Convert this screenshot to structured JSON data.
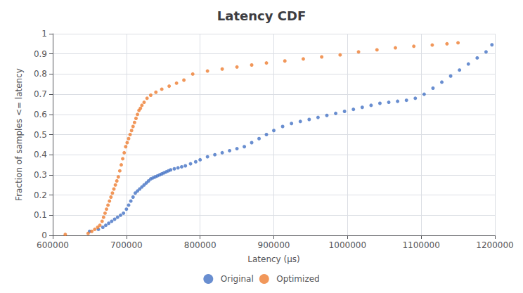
{
  "chart_data": {
    "type": "scatter",
    "title": "Latency CDF",
    "xlabel": "Latency (µs)",
    "ylabel": "Fraction of samples <= latency",
    "xlim": [
      600000,
      1200000
    ],
    "ylim": [
      0,
      1
    ],
    "xticks": [
      600000,
      700000,
      800000,
      900000,
      1000000,
      1100000,
      1200000
    ],
    "yticks": [
      0,
      0.1,
      0.2,
      0.3,
      0.4,
      0.5,
      0.6,
      0.7,
      0.8,
      0.9,
      1
    ],
    "grid": true,
    "legend": "bottom",
    "series": [
      {
        "name": "Original",
        "color": "#4472C4",
        "x": [
          650000,
          662000,
          668000,
          672000,
          676000,
          680000,
          684000,
          688000,
          692000,
          696000,
          700000,
          703000,
          706000,
          709000,
          712000,
          715000,
          718000,
          721000,
          724000,
          727000,
          730000,
          733000,
          736000,
          739000,
          742000,
          745000,
          748000,
          751000,
          754000,
          757000,
          760000,
          765000,
          770000,
          775000,
          780000,
          787000,
          794000,
          800000,
          810000,
          820000,
          830000,
          840000,
          850000,
          860000,
          870000,
          880000,
          890000,
          900000,
          912000,
          924000,
          936000,
          948000,
          960000,
          972000,
          984000,
          996000,
          1008000,
          1020000,
          1032000,
          1044000,
          1056000,
          1068000,
          1080000,
          1092000,
          1104000,
          1116000,
          1128000,
          1140000,
          1152000,
          1164000,
          1176000,
          1188000,
          1196000
        ],
        "values": [
          0.02,
          0.03,
          0.04,
          0.05,
          0.06,
          0.07,
          0.08,
          0.09,
          0.1,
          0.11,
          0.13,
          0.15,
          0.17,
          0.19,
          0.21,
          0.22,
          0.23,
          0.24,
          0.25,
          0.26,
          0.27,
          0.28,
          0.285,
          0.29,
          0.295,
          0.3,
          0.305,
          0.31,
          0.315,
          0.32,
          0.325,
          0.33,
          0.335,
          0.34,
          0.345,
          0.355,
          0.365,
          0.375,
          0.39,
          0.4,
          0.41,
          0.42,
          0.43,
          0.44,
          0.46,
          0.48,
          0.5,
          0.52,
          0.54,
          0.555,
          0.565,
          0.575,
          0.585,
          0.595,
          0.605,
          0.615,
          0.625,
          0.635,
          0.645,
          0.655,
          0.66,
          0.665,
          0.67,
          0.68,
          0.7,
          0.73,
          0.76,
          0.79,
          0.82,
          0.85,
          0.88,
          0.91,
          0.945
        ]
      },
      {
        "name": "Optimized",
        "color": "#ED7D31",
        "x": [
          617000,
          648000,
          653000,
          657000,
          661000,
          664000,
          667000,
          669000,
          671000,
          673000,
          675000,
          677000,
          679000,
          681000,
          683000,
          685000,
          687000,
          689000,
          691000,
          693000,
          695000,
          697000,
          699000,
          701000,
          703000,
          705000,
          707000,
          709000,
          711000,
          713000,
          715000,
          717000,
          719000,
          721000,
          724000,
          728000,
          733000,
          740000,
          748000,
          758000,
          768000,
          778000,
          790000,
          810000,
          830000,
          850000,
          870000,
          890000,
          915000,
          940000,
          965000,
          990000,
          1015000,
          1040000,
          1065000,
          1090000,
          1115000,
          1135000,
          1150000
        ],
        "values": [
          0.005,
          0.01,
          0.02,
          0.03,
          0.04,
          0.05,
          0.07,
          0.09,
          0.11,
          0.13,
          0.15,
          0.17,
          0.19,
          0.21,
          0.23,
          0.25,
          0.27,
          0.29,
          0.32,
          0.35,
          0.38,
          0.41,
          0.44,
          0.46,
          0.48,
          0.5,
          0.52,
          0.54,
          0.56,
          0.58,
          0.6,
          0.62,
          0.63,
          0.645,
          0.66,
          0.68,
          0.695,
          0.71,
          0.725,
          0.74,
          0.755,
          0.77,
          0.8,
          0.815,
          0.825,
          0.835,
          0.845,
          0.855,
          0.865,
          0.875,
          0.885,
          0.895,
          0.91,
          0.92,
          0.93,
          0.938,
          0.944,
          0.95,
          0.955
        ]
      }
    ]
  }
}
